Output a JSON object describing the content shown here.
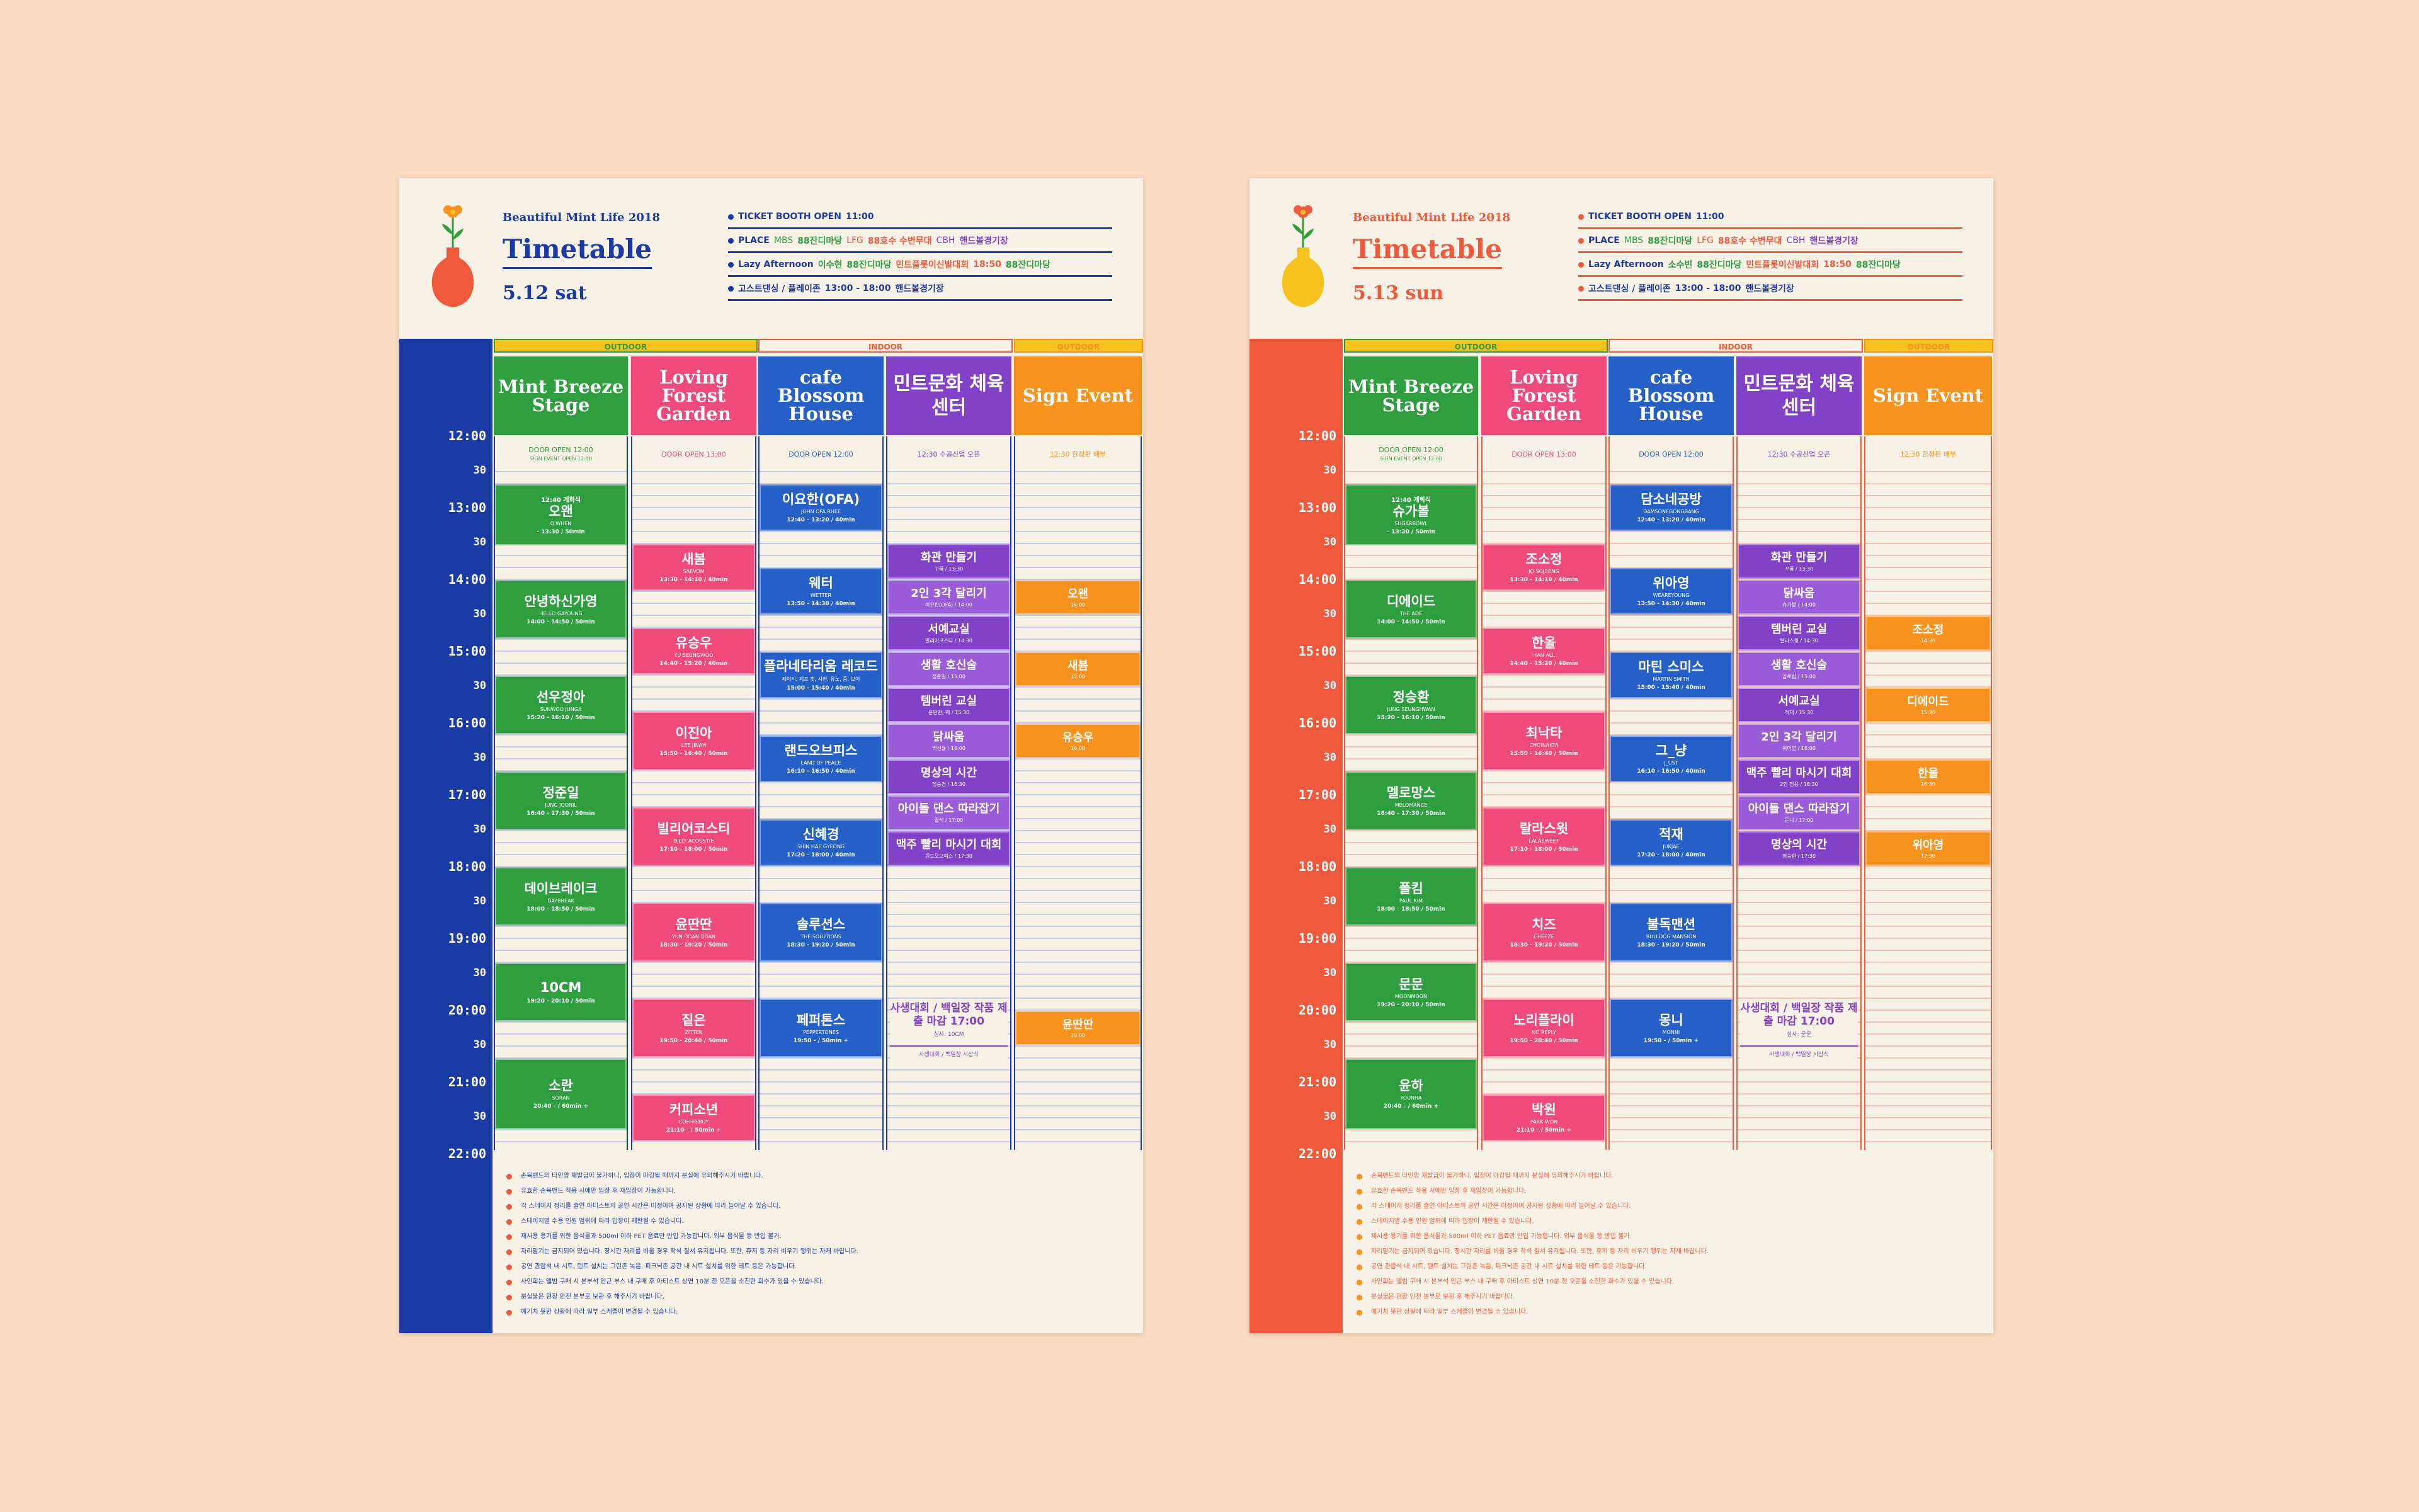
{
  "colors": {
    "blue": "#1a3aa6",
    "red": "#f05a3c",
    "green": "#2e9e3f",
    "pink": "#f04a7a",
    "cafe": "#2560c8",
    "purple": "#8142c7",
    "purple_light": "#9a5cd8",
    "orange": "#f7921e",
    "bg": "#f9dcc2",
    "paper": "#f8f1e6"
  },
  "posters": [
    {
      "subtitle": "Beautiful Mint Life 2018",
      "title": "Timetable",
      "date": "5.12 sat",
      "info": [
        [
          "TICKET BOOTH OPEN",
          "11:00"
        ],
        [
          "PLACE",
          "MBS",
          "88잔디마당",
          "LFG",
          "88호수 수변무대",
          "CBH",
          "핸드볼경기장"
        ],
        [
          "Lazy Afternoon",
          "이수현",
          "88잔디마당",
          "민트플롯이신발대회",
          "18:50",
          "88잔디마당"
        ],
        [
          "고스트댄싱 / 플레이존",
          "13:00 - 18:00",
          "핸드볼경기장"
        ]
      ],
      "categories": [
        "OUTDOOR",
        "INDOOR",
        "OUTDOOR"
      ],
      "stages": [
        "Mint Breeze Stage",
        "Loving Forest Garden",
        "cafe Blossom House",
        "민트문화 체육센터",
        "Sign Event"
      ],
      "times": [
        "12:00",
        "30",
        "13:00",
        "30",
        "14:00",
        "30",
        "15:00",
        "30",
        "16:00",
        "30",
        "17:00",
        "30",
        "18:00",
        "30",
        "19:00",
        "30",
        "20:00",
        "30",
        "21:00",
        "30",
        "22:00"
      ],
      "doors": [
        {
          "t": "DOOR OPEN 12:00",
          "s": "SIGN EVENT OPEN 12:00"
        },
        {
          "t": "DOOR OPEN 13:00",
          "s": ""
        },
        {
          "t": "DOOR OPEN 12:00",
          "s": ""
        },
        {
          "t": "12:30 수공산업 오픈",
          "s": ""
        },
        {
          "t": "12:30 한정판 배부",
          "s": ""
        }
      ],
      "acts": [
        [
          "12:40 개회식",
          "오왠",
          "O.WHEN",
          "- 13:30 / 50min"
        ],
        [
          "",
          "안녕하신가영",
          "HELLO GAYOUNG",
          "14:00 - 14:50 / 50min"
        ],
        [
          "",
          "선우정아",
          "SUNWOO JUNGA",
          "15:20 - 16:10 / 50min"
        ],
        [
          "",
          "정준일",
          "JUNG JOONIL",
          "16:40 - 17:30 / 50min"
        ],
        [
          "",
          "데이브레이크",
          "DAYBREAK",
          "18:00 - 18:50 / 50min"
        ],
        [
          "",
          "10CM",
          "",
          "19:20 - 20:10 / 50min"
        ],
        [
          "",
          "소란",
          "SORAN",
          "20:40 - / 60min +"
        ],
        [
          "",
          "새봄",
          "SAEVOM",
          "13:30 - 14:10 / 40min"
        ],
        [
          "",
          "유승우",
          "YU SEUNGWOO",
          "14:40 - 15:20 / 40min"
        ],
        [
          "",
          "이진아",
          "LEE JINAH",
          "15:50 - 16:40 / 50min"
        ],
        [
          "",
          "빌리어코스티",
          "BILLY ACOUSTIE",
          "17:10 - 18:00 / 50min"
        ],
        [
          "",
          "윤딴딴",
          "YUN DDAN DDAN",
          "18:30 - 19:20 / 50min"
        ],
        [
          "",
          "짙은",
          "ZITTEN",
          "19:50 - 20:40 / 50min"
        ],
        [
          "",
          "커피소년",
          "COFFEEBOY",
          "21:10 - / 50min +"
        ],
        [
          "",
          "이요한(OFA)",
          "JOHN OFA RHEE",
          "12:40 - 13:20 / 40min"
        ],
        [
          "",
          "웨터",
          "WETTER",
          "13:50 - 14:30 / 40min"
        ],
        [
          "",
          "플라네타리움 레코드",
          "제이티, 제프 캣, 시헌, 유노, 중, 보이",
          "15:00 - 15:40 / 40min"
        ],
        [
          "",
          "랜드오브피스",
          "LAND OF PEACE",
          "16:10 - 16:50 / 40min"
        ],
        [
          "",
          "신혜경",
          "SHIN HAE GYEONG",
          "17:20 - 18:00 / 40min"
        ],
        [
          "",
          "솔루션스",
          "THE SOLUTIONS",
          "18:30 - 19:20 / 50min"
        ],
        [
          "",
          "페퍼톤스",
          "PEPPERTONES",
          "19:50 - / 50min +"
        ],
        [
          "",
          "화관 만들기",
          "꾸꿈 / 13:30",
          ""
        ],
        [
          "",
          "2인 3각 달리기",
          "이요한(OFA) / 14:00",
          ""
        ],
        [
          "",
          "서예교실",
          "빌리어코스티 / 14:30",
          ""
        ],
        [
          "",
          "생활 호신술",
          "정준일 / 15:00",
          ""
        ],
        [
          "",
          "템버린 교실",
          "윤딴딴, 웨 / 15:30",
          ""
        ],
        [
          "",
          "닭싸움",
          "백선율 / 16:00",
          ""
        ],
        [
          "",
          "명상의 시간",
          "정숭경 / 16:30",
          ""
        ],
        [
          "",
          "아이돌 댄스 따라잡기",
          "짙석 / 17:00",
          ""
        ],
        [
          "",
          "맥주 빨리 마시기 대회",
          "원드오브피스 / 17:30",
          ""
        ],
        [
          "",
          "오왠",
          "14:00",
          ""
        ],
        [
          "",
          "새봄",
          "15:00",
          ""
        ],
        [
          "",
          "유승우",
          "16:00",
          ""
        ],
        [
          "",
          "윤딴딴",
          "20:00",
          ""
        ]
      ],
      "contest": {
        "nm": "사생대회 / 백일장 작품 제출 마감 17:00",
        "sub": "심사: 10CM",
        "ft": "사생대회 / 백일장 시상식"
      },
      "notes": [
        "손목밴드의 타인양 재발급이 불가하니, 입장이 마감될 때까지 분실에 유의해주시기 바랍니다.",
        "유효한 손목밴드 착용 시에만 입장 후 재입장이 가능합니다.",
        "각 스테이지 정리를 출연 아티스트의 공연 시간은 미정이며 공지된 상황에 따라 늘어날 수 있습니다.",
        "스테이지별 수용 인원 범위에 따라 입장이 제한될 수 있습니다.",
        "재사용 용기를 위한 음식물과 500ml 이하 PET 음료만 반입 가능합니다. 외부 음식물 등 반입 불가.",
        "자리맡기는 금지되어 있습니다. 장시간 자리를 비울 경우 착석 질서 유지됩니다. 또한, 휴지 등 자리 비우기 행위는 자제 바랍니다.",
        "공연 관람석 내 시트, 텐트 설치는 그린존 녹음, 피크닉존 공간 내 시트 설치를 위한 테트 등은 가능합니다.",
        "사인회는 앨범 구매 시 본부석 인근 부스 내 구매 후 아티스트 상연 10분 전 오픈을 소진한 회수가 있을 수 있습니다.",
        "분실물은 현장 안전 본부로 보관 후 해주시기 바랍니다.",
        "예기치 못한 상황에 따라 일부 스케줄이 변경될 수 있습니다."
      ]
    },
    {
      "subtitle": "Beautiful Mint Life 2018",
      "title": "Timetable",
      "date": "5.13 sun",
      "info": [
        [
          "TICKET BOOTH OPEN",
          "11:00"
        ],
        [
          "PLACE",
          "MBS",
          "88잔디마당",
          "LFG",
          "88호수 수변무대",
          "CBH",
          "핸드볼경기장"
        ],
        [
          "Lazy Afternoon",
          "소수빈",
          "88잔디마당",
          "민트플롯이신발대회",
          "18:50",
          "88잔디마당"
        ],
        [
          "고스트댄싱 / 플레이존",
          "13:00 - 18:00",
          "핸드볼경기장"
        ]
      ],
      "categories": [
        "OUTDOOR",
        "INDOOR",
        "OUTDOOR"
      ],
      "stages": [
        "Mint Breeze Stage",
        "Loving Forest Garden",
        "cafe Blossom House",
        "민트문화 체육센터",
        "Sign Event"
      ],
      "times": [
        "12:00",
        "30",
        "13:00",
        "30",
        "14:00",
        "30",
        "15:00",
        "30",
        "16:00",
        "30",
        "17:00",
        "30",
        "18:00",
        "30",
        "19:00",
        "30",
        "20:00",
        "30",
        "21:00",
        "30",
        "22:00"
      ],
      "doors": [
        {
          "t": "DOOR OPEN 12:00",
          "s": "SIGN EVENT OPEN 12:00"
        },
        {
          "t": "DOOR OPEN 13:00",
          "s": ""
        },
        {
          "t": "DOOR OPEN 12:00",
          "s": ""
        },
        {
          "t": "12:30 수공산업 오픈",
          "s": ""
        },
        {
          "t": "12:30 한정판 배부",
          "s": ""
        }
      ],
      "acts": [
        [
          "12:40 개회식",
          "슈가볼",
          "SUGARBOWL",
          "- 13:30 / 50min"
        ],
        [
          "",
          "디에이드",
          "THE ADE",
          "14:00 - 14:50 / 50min"
        ],
        [
          "",
          "정승환",
          "JUNG SEUNGHWAN",
          "15:20 - 16:10 / 50min"
        ],
        [
          "",
          "멜로망스",
          "MELOMANCE",
          "16:40 - 17:30 / 50min"
        ],
        [
          "",
          "폴킴",
          "PAUL KIM",
          "18:00 - 18:50 / 50min"
        ],
        [
          "",
          "문문",
          "MOONMOON",
          "19:20 - 20:10 / 50min"
        ],
        [
          "",
          "윤하",
          "YOUNHA",
          "20:40 - / 60min +"
        ],
        [
          "",
          "조소정",
          "JO SOJEONG",
          "13:30 - 14:10 / 40min"
        ],
        [
          "",
          "한올",
          "HAN ALL",
          "14:40 - 15:20 / 40min"
        ],
        [
          "",
          "최낙타",
          "CHOINAKTA",
          "15:50 - 16:40 / 50min"
        ],
        [
          "",
          "랄라스윗",
          "LALASWEET",
          "17:10 - 18:00 / 50min"
        ],
        [
          "",
          "치즈",
          "CHEEZE",
          "18:30 - 19:20 / 50min"
        ],
        [
          "",
          "노리플라이",
          "NO REPLY",
          "19:50 - 20:40 / 50min"
        ],
        [
          "",
          "박원",
          "PARK WON",
          "21:10 - / 50min +"
        ],
        [
          "",
          "담소네공방",
          "DAMSONEGONGBANG",
          "12:40 - 13:20 / 40min"
        ],
        [
          "",
          "위아영",
          "WEAREYOUNG",
          "13:50 - 14:30 / 40min"
        ],
        [
          "",
          "마틴 스미스",
          "MARTIN SMITH",
          "15:00 - 15:40 / 40min"
        ],
        [
          "",
          "그_냥",
          "J_UST",
          "16:10 - 16:50 / 40min"
        ],
        [
          "",
          "적재",
          "JUKJAE",
          "17:20 - 18:00 / 40min"
        ],
        [
          "",
          "불독맨션",
          "BULLDOG MANSION",
          "18:30 - 19:20 / 50min"
        ],
        [
          "",
          "몽니",
          "MONNI",
          "19:50 - / 50min +"
        ],
        [
          "",
          "화관 만들기",
          "꾸꿈 / 13:30",
          ""
        ],
        [
          "",
          "닭싸움",
          "슈가볼 / 14:00",
          ""
        ],
        [
          "",
          "템버린 교실",
          "랄라스윗 / 14:30",
          ""
        ],
        [
          "",
          "생활 호신술",
          "곰로림 / 15:00",
          ""
        ],
        [
          "",
          "서예교실",
          "적재 / 15:30",
          ""
        ],
        [
          "",
          "2인 3각 달리기",
          "위아영 / 16:00",
          ""
        ],
        [
          "",
          "맥주 빨리 마시기 대회",
          "2인 정용 / 16:30",
          ""
        ],
        [
          "",
          "아이돌 댄스 따라잡기",
          "문니 / 17:00",
          ""
        ],
        [
          "",
          "명상의 시간",
          "정승환 / 17:30",
          ""
        ],
        [
          "",
          "조소정",
          "14:30",
          ""
        ],
        [
          "",
          "디에이드",
          "15:30",
          ""
        ],
        [
          "",
          "한올",
          "16:30",
          ""
        ],
        [
          "",
          "위아영",
          "17:30",
          ""
        ]
      ],
      "contest": {
        "nm": "사생대회 / 백일장 작품 제출 마감 17:00",
        "sub": "심사: 문문",
        "ft": "사생대회 / 백일장 시상식"
      },
      "notes": [
        "손목밴드의 타인양 재발급이 불가하니, 입장이 마감될 때까지 분실에 유의해주시기 바랍니다.",
        "유효한 손목밴드 착용 시에만 입장 후 재입장이 가능합니다.",
        "각 스테이지 정리를 출연 아티스트의 공연 시간은 미정이며 공지된 상황에 따라 늘어날 수 있습니다.",
        "스테이지별 수용 인원 범위에 따라 입장이 제한될 수 있습니다.",
        "재사용 용기를 위한 음식물과 500ml 이하 PET 음료만 반입 가능합니다. 외부 음식물 등 반입 불가.",
        "자리맡기는 금지되어 있습니다. 장시간 자리를 비울 경우 착석 질서 유지됩니다. 또한, 휴지 등 자리 비우기 행위는 자제 바랍니다.",
        "공연 관람석 내 시트, 텐트 설치는 그린존 녹음, 피크닉존 공간 내 시트 설치를 위한 테트 등은 가능합니다.",
        "사인회는 앨범 구매 시 본부석 인근 부스 내 구매 후 아티스트 상연 10분 전 오픈을 소진한 회수가 있을 수 있습니다.",
        "분실물은 현장 안전 본부로 보관 후 해주시기 바랍니다.",
        "예기치 못한 상황에 따라 일부 스케줄이 변경될 수 있습니다."
      ]
    }
  ]
}
